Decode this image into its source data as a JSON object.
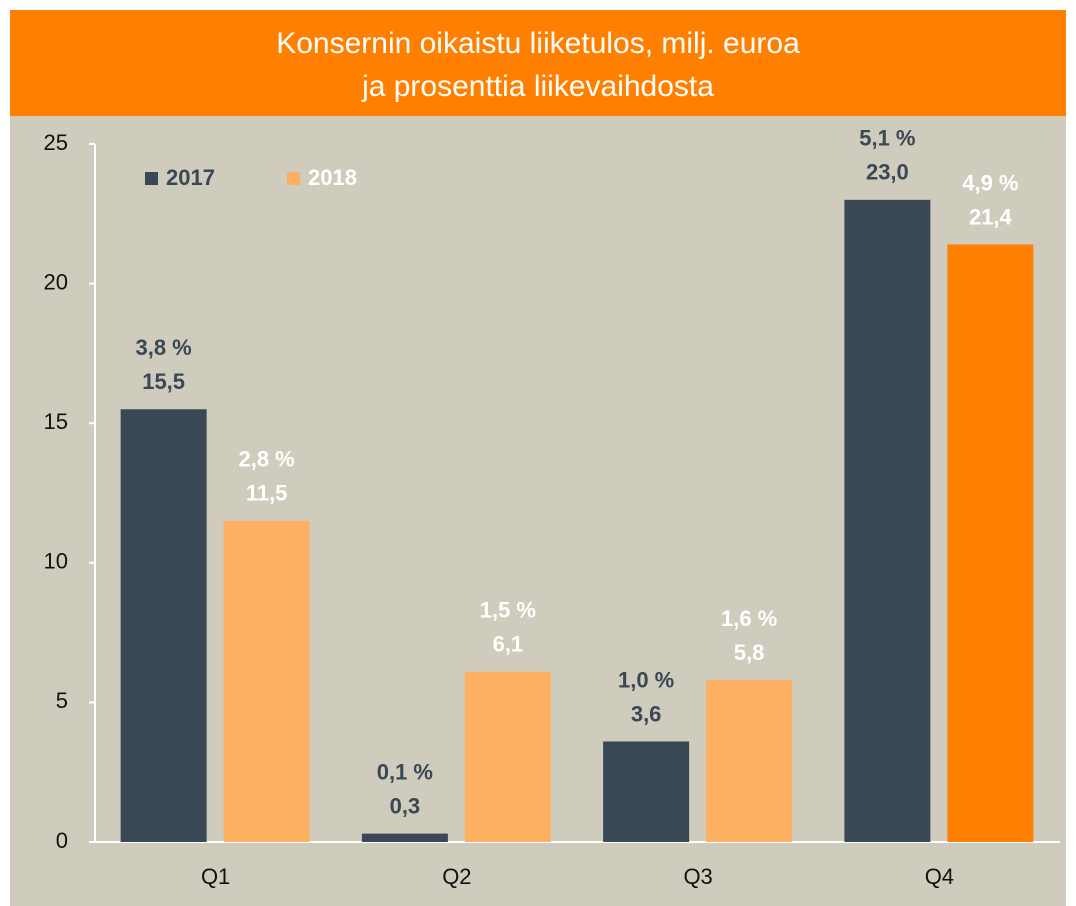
{
  "chart_data": {
    "type": "bar",
    "title": [
      "Konsernin oikaistu liiketulos, milj. euroa",
      "ja prosenttia liikevaihdosta"
    ],
    "categories": [
      "Q1",
      "Q2",
      "Q3",
      "Q4"
    ],
    "series": [
      {
        "name": "2017",
        "color": "#3a4754",
        "label_color": "#3a4754",
        "values": [
          15.5,
          0.3,
          3.6,
          23.0
        ],
        "value_labels": [
          "15,5",
          "0,3",
          "3,6",
          "23,0"
        ],
        "percent_labels": [
          "3,8 %",
          "0,1 %",
          "1,0 %",
          "5,1 %"
        ]
      },
      {
        "name": "2018",
        "color": "#fdb062",
        "label_color": "#ffffff",
        "colors": [
          "#fdb062",
          "#fdb062",
          "#fdb062",
          "#ff8000"
        ],
        "values": [
          11.5,
          6.1,
          5.8,
          21.4
        ],
        "value_labels": [
          "11,5",
          "6,1",
          "5,8",
          "21,4"
        ],
        "percent_labels": [
          "2,8 %",
          "1,5 %",
          "1,6 %",
          "4,9 %"
        ]
      }
    ],
    "ylim": [
      0,
      25
    ],
    "yticks": [
      0,
      5,
      10,
      15,
      20,
      25
    ],
    "header_color": "#ff8000",
    "background": "#cfccbd",
    "legend": "upper left"
  }
}
